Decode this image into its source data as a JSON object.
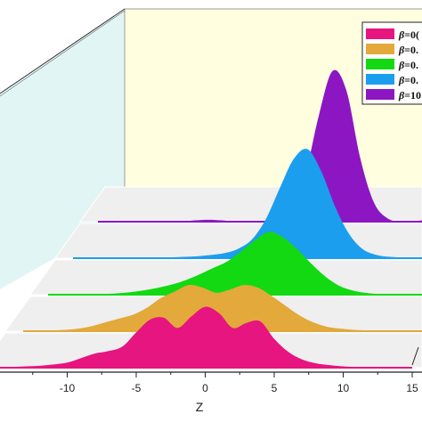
{
  "chart_data": {
    "type": "area",
    "title": "",
    "xlabel": "Z",
    "ylabel": "",
    "xlim": [
      -15,
      15
    ],
    "x_ticks": [
      "-10",
      "-5",
      "0",
      "5",
      "10",
      "15"
    ],
    "grid": false,
    "legend_position": "top-right",
    "x": [
      -15,
      -14,
      -13,
      -12,
      -11,
      -10,
      -9,
      -8,
      -7,
      -6,
      -5,
      -4,
      -3,
      -2,
      -1,
      0,
      1,
      2,
      3,
      4,
      5,
      6,
      7,
      8,
      9,
      10,
      11,
      12,
      13,
      14,
      15
    ],
    "series": [
      {
        "name": "β=0(",
        "color": "#e6157f",
        "values": [
          0.01,
          0.01,
          0.02,
          0.03,
          0.05,
          0.08,
          0.15,
          0.22,
          0.26,
          0.33,
          0.55,
          0.75,
          0.78,
          0.62,
          0.8,
          0.95,
          0.85,
          0.62,
          0.7,
          0.72,
          0.45,
          0.25,
          0.13,
          0.07,
          0.04,
          0.02,
          0.01,
          0.01,
          0.01,
          0.01,
          0.01
        ]
      },
      {
        "name": "β=0.",
        "color": "#e3a93b",
        "values": [
          0.0,
          0.0,
          0.01,
          0.02,
          0.04,
          0.08,
          0.14,
          0.2,
          0.26,
          0.37,
          0.52,
          0.62,
          0.72,
          0.68,
          0.6,
          0.65,
          0.72,
          0.68,
          0.55,
          0.4,
          0.25,
          0.14,
          0.07,
          0.04,
          0.02,
          0.01,
          0.0,
          0.0,
          0.0,
          0.0,
          0.0
        ]
      },
      {
        "name": "β=0..",
        "color": "#12d912",
        "values": [
          0.0,
          0.0,
          0.0,
          0.0,
          0.01,
          0.02,
          0.04,
          0.07,
          0.11,
          0.16,
          0.23,
          0.32,
          0.42,
          0.52,
          0.68,
          0.85,
          0.98,
          0.9,
          0.72,
          0.5,
          0.3,
          0.15,
          0.07,
          0.03,
          0.01,
          0.0,
          0.0,
          0.0,
          0.0,
          0.0,
          0.0
        ]
      },
      {
        "name": "β=0...",
        "color": "#1c9eef",
        "values": [
          0.0,
          0.0,
          0.0,
          0.0,
          0.0,
          0.0,
          0.01,
          0.01,
          0.02,
          0.03,
          0.05,
          0.08,
          0.15,
          0.3,
          0.62,
          1.1,
          1.55,
          1.7,
          1.35,
          0.8,
          0.38,
          0.14,
          0.05,
          0.02,
          0.01,
          0.0,
          0.0,
          0.0,
          0.0,
          0.0,
          0.0
        ]
      },
      {
        "name": "β=10",
        "color": "#8c17c2",
        "values": [
          0.0,
          0.0,
          0.0,
          0.0,
          0.0,
          0.0,
          0.0,
          0.02,
          0.03,
          0.02,
          0.0,
          0.0,
          0.0,
          0.02,
          0.15,
          0.7,
          1.65,
          2.35,
          2.05,
          1.0,
          0.3,
          0.05,
          0.0,
          0.01,
          0.03,
          0.01,
          0.0,
          0.0,
          0.01,
          0.02,
          0.0
        ]
      }
    ]
  },
  "legend_labels": {
    "prefix": "β",
    "items": [
      "=0(",
      "=0.",
      "=0.",
      "=0.",
      "=10"
    ]
  }
}
